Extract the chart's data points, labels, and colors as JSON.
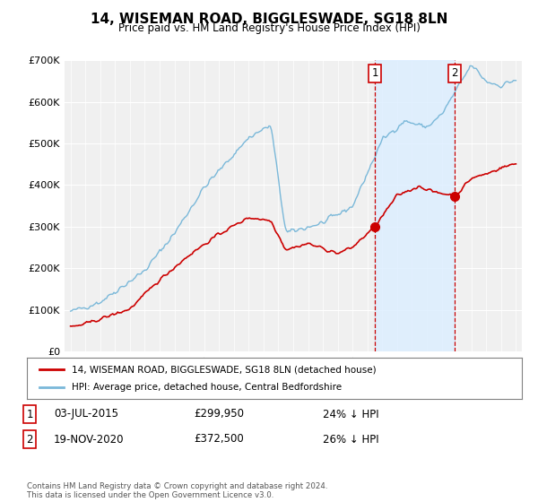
{
  "title": "14, WISEMAN ROAD, BIGGLESWADE, SG18 8LN",
  "subtitle": "Price paid vs. HM Land Registry's House Price Index (HPI)",
  "sale1_date": "03-JUL-2015",
  "sale1_price": 299950,
  "sale1_label": "1",
  "sale1_pct": "24% ↓ HPI",
  "sale2_date": "19-NOV-2020",
  "sale2_price": 372500,
  "sale2_label": "2",
  "sale2_pct": "26% ↓ HPI",
  "hpi_color": "#7ab8d9",
  "price_color": "#cc0000",
  "vline_color": "#cc0000",
  "shaded_color": "#ddeeff",
  "legend_label_price": "14, WISEMAN ROAD, BIGGLESWADE, SG18 8LN (detached house)",
  "legend_label_hpi": "HPI: Average price, detached house, Central Bedfordshire",
  "footnote": "Contains HM Land Registry data © Crown copyright and database right 2024.\nThis data is licensed under the Open Government Licence v3.0.",
  "ylim": [
    0,
    700000
  ],
  "yticks": [
    0,
    100000,
    200000,
    300000,
    400000,
    500000,
    600000,
    700000
  ],
  "ytick_labels": [
    "£0",
    "£100K",
    "£200K",
    "£300K",
    "£400K",
    "£500K",
    "£600K",
    "£700K"
  ],
  "background_color": "#ffffff",
  "plot_bg_color": "#f0f0f0"
}
